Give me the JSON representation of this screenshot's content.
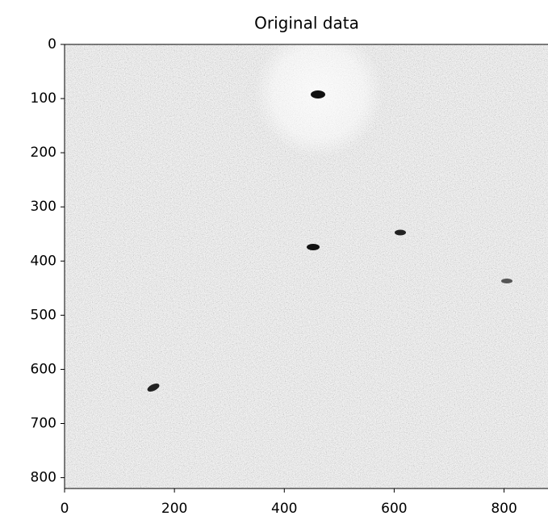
{
  "chart_data": {
    "type": "image",
    "title": "Original data",
    "xlim": [
      0,
      880
    ],
    "xticks": [
      0,
      200,
      400,
      600,
      800
    ],
    "ylim": [
      820,
      0
    ],
    "yticks": [
      0,
      100,
      200,
      300,
      400,
      500,
      600,
      700,
      800
    ],
    "colormap": "gray_r"
  }
}
